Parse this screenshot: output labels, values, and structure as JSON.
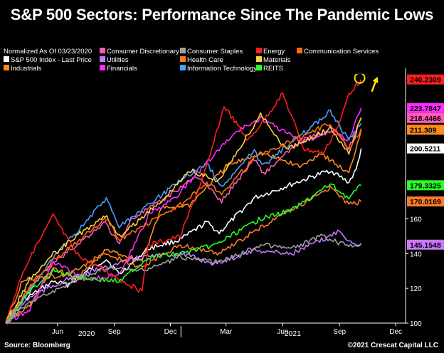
{
  "title": "S&P 500 Sectors: Performance Since The Pandemic Lows",
  "source": "Source: Bloomberg",
  "copyright": "©2021 Crescat Capital LLC",
  "chart_data": {
    "type": "line",
    "legend_header": "Normalized As Of 03/23/2020",
    "legend_placement": "top-left",
    "x_tick_labels": [
      "Jun",
      "Sep",
      "Dec",
      "Mar",
      "Jun",
      "Sep",
      "Dec"
    ],
    "year_labels": [
      "2020",
      "2021"
    ],
    "y_ticks": [
      100,
      120,
      140,
      160
    ],
    "ylim": [
      100,
      245
    ],
    "x_range": [
      "2020-03-23",
      "2021-12-31"
    ],
    "grid": false,
    "annotation": "yellow circle and arrow at Energy end point",
    "series": [
      {
        "name": "S&P 500 Index - Last Price",
        "color": "#ffffff",
        "last": "200.5211",
        "points": [
          [
            "2020-03-23",
            100
          ],
          [
            "2020-04-15",
            112
          ],
          [
            "2020-06-08",
            124
          ],
          [
            "2020-07-01",
            122
          ],
          [
            "2020-08-15",
            133
          ],
          [
            "2020-09-02",
            137
          ],
          [
            "2020-09-23",
            128
          ],
          [
            "2020-11-09",
            143
          ],
          [
            "2020-12-31",
            148
          ],
          [
            "2021-02-12",
            158
          ],
          [
            "2021-03-04",
            152
          ],
          [
            "2021-04-30",
            172
          ],
          [
            "2021-06-15",
            178
          ],
          [
            "2021-08-31",
            188
          ],
          [
            "2021-09-30",
            181
          ],
          [
            "2021-10-12",
            188
          ],
          [
            "2021-10-20",
            200.5
          ]
        ]
      },
      {
        "name": "Industrials",
        "color": "#ff8a1e",
        "last": "211.309",
        "points": [
          [
            "2020-03-23",
            100
          ],
          [
            "2020-05-01",
            110
          ],
          [
            "2020-06-08",
            132
          ],
          [
            "2020-07-15",
            125
          ],
          [
            "2020-09-02",
            142
          ],
          [
            "2020-10-30",
            136
          ],
          [
            "2020-11-30",
            166
          ],
          [
            "2021-01-15",
            168
          ],
          [
            "2021-03-15",
            190
          ],
          [
            "2021-05-10",
            198
          ],
          [
            "2021-07-15",
            190
          ],
          [
            "2021-08-15",
            198
          ],
          [
            "2021-09-30",
            186
          ],
          [
            "2021-10-20",
            211.3
          ]
        ]
      },
      {
        "name": "Consumer Discretionary",
        "color": "#ff5ab4",
        "last": "218.4466",
        "points": [
          [
            "2020-03-23",
            100
          ],
          [
            "2020-04-30",
            120
          ],
          [
            "2020-06-10",
            135
          ],
          [
            "2020-08-31",
            158
          ],
          [
            "2020-09-23",
            145
          ],
          [
            "2020-10-12",
            160
          ],
          [
            "2020-11-30",
            170
          ],
          [
            "2021-01-26",
            185
          ],
          [
            "2021-03-08",
            170
          ],
          [
            "2021-04-30",
            195
          ],
          [
            "2021-05-15",
            186
          ],
          [
            "2021-07-15",
            205
          ],
          [
            "2021-09-07",
            212
          ],
          [
            "2021-09-30",
            200
          ],
          [
            "2021-10-20",
            218.4
          ]
        ]
      },
      {
        "name": "Utilities",
        "color": "#c878ff",
        "last": "145.1548",
        "points": [
          [
            "2020-03-23",
            100
          ],
          [
            "2020-05-01",
            115
          ],
          [
            "2020-06-30",
            125
          ],
          [
            "2020-08-31",
            132
          ],
          [
            "2020-10-30",
            138
          ],
          [
            "2020-12-31",
            140
          ],
          [
            "2021-02-26",
            134
          ],
          [
            "2021-04-30",
            142
          ],
          [
            "2021-06-30",
            140
          ],
          [
            "2021-08-31",
            150
          ],
          [
            "2021-09-15",
            154
          ],
          [
            "2021-09-30",
            147
          ],
          [
            "2021-10-20",
            145.2
          ]
        ]
      },
      {
        "name": "Financials",
        "color": "#ff2cff",
        "last": "223.7847",
        "points": [
          [
            "2020-03-23",
            100
          ],
          [
            "2020-05-01",
            108
          ],
          [
            "2020-06-08",
            135
          ],
          [
            "2020-07-31",
            125
          ],
          [
            "2020-09-25",
            128
          ],
          [
            "2020-11-09",
            162
          ],
          [
            "2020-12-31",
            175
          ],
          [
            "2021-02-26",
            198
          ],
          [
            "2021-03-31",
            210
          ],
          [
            "2021-05-10",
            218
          ],
          [
            "2021-07-19",
            204
          ],
          [
            "2021-09-07",
            212
          ],
          [
            "2021-09-30",
            205
          ],
          [
            "2021-10-20",
            223.8
          ]
        ]
      },
      {
        "name": "Consumer Staples",
        "color": "#a0a0a0",
        "last": "",
        "points": [
          [
            "2020-03-23",
            100
          ],
          [
            "2020-05-01",
            112
          ],
          [
            "2020-06-30",
            122
          ],
          [
            "2020-09-02",
            132
          ],
          [
            "2020-10-30",
            130
          ],
          [
            "2020-12-31",
            138
          ],
          [
            "2021-03-04",
            135
          ],
          [
            "2021-05-10",
            145
          ],
          [
            "2021-06-30",
            143
          ],
          [
            "2021-08-16",
            150
          ],
          [
            "2021-09-30",
            144
          ],
          [
            "2021-10-20",
            146
          ]
        ]
      },
      {
        "name": "Health Care",
        "color": "#ff7a28",
        "last": "170.0169",
        "points": [
          [
            "2020-03-23",
            100
          ],
          [
            "2020-04-20",
            125
          ],
          [
            "2020-06-30",
            128
          ],
          [
            "2020-08-31",
            140
          ],
          [
            "2020-10-30",
            132
          ],
          [
            "2020-12-31",
            145
          ],
          [
            "2021-03-04",
            140
          ],
          [
            "2021-05-10",
            155
          ],
          [
            "2021-08-31",
            178
          ],
          [
            "2021-09-30",
            168
          ],
          [
            "2021-10-20",
            170
          ]
        ]
      },
      {
        "name": "Information Technology",
        "color": "#4aa0ff",
        "last": "",
        "points": [
          [
            "2020-03-23",
            100
          ],
          [
            "2020-04-30",
            118
          ],
          [
            "2020-06-10",
            138
          ],
          [
            "2020-09-02",
            172
          ],
          [
            "2020-09-23",
            155
          ],
          [
            "2020-12-31",
            182
          ],
          [
            "2021-02-12",
            192
          ],
          [
            "2021-03-08",
            178
          ],
          [
            "2021-04-30",
            200
          ],
          [
            "2021-05-12",
            190
          ],
          [
            "2021-08-31",
            222
          ],
          [
            "2021-09-30",
            205
          ],
          [
            "2021-10-20",
            215
          ]
        ]
      },
      {
        "name": "Energy",
        "color": "#ff1e1e",
        "last": "240.2309",
        "points": [
          [
            "2020-03-23",
            100
          ],
          [
            "2020-04-20",
            130
          ],
          [
            "2020-06-08",
            162
          ],
          [
            "2020-07-15",
            140
          ],
          [
            "2020-08-31",
            130
          ],
          [
            "2020-10-30",
            118
          ],
          [
            "2020-11-09",
            145
          ],
          [
            "2020-12-31",
            150
          ],
          [
            "2021-02-12",
            190
          ],
          [
            "2021-03-12",
            225
          ],
          [
            "2021-04-20",
            205
          ],
          [
            "2021-06-15",
            232
          ],
          [
            "2021-07-20",
            200
          ],
          [
            "2021-08-20",
            198
          ],
          [
            "2021-09-15",
            215
          ],
          [
            "2021-09-30",
            232
          ],
          [
            "2021-10-20",
            240.2
          ]
        ]
      },
      {
        "name": "Materials",
        "color": "#ffd040",
        "last": "",
        "points": [
          [
            "2020-03-23",
            100
          ],
          [
            "2020-05-01",
            125
          ],
          [
            "2020-06-08",
            140
          ],
          [
            "2020-08-31",
            162
          ],
          [
            "2020-09-23",
            150
          ],
          [
            "2020-11-30",
            170
          ],
          [
            "2021-01-15",
            188
          ],
          [
            "2021-03-04",
            182
          ],
          [
            "2021-05-10",
            220
          ],
          [
            "2021-06-21",
            200
          ],
          [
            "2021-08-31",
            212
          ],
          [
            "2021-09-30",
            198
          ],
          [
            "2021-10-20",
            218
          ]
        ]
      },
      {
        "name": "Communication Services",
        "color": "#ff6a10",
        "last": "",
        "points": [
          [
            "2020-03-23",
            100
          ],
          [
            "2020-04-30",
            120
          ],
          [
            "2020-06-08",
            136
          ],
          [
            "2020-09-02",
            160
          ],
          [
            "2020-09-23",
            148
          ],
          [
            "2020-12-31",
            168
          ],
          [
            "2021-02-12",
            180
          ],
          [
            "2021-03-08",
            175
          ],
          [
            "2021-04-30",
            195
          ],
          [
            "2021-06-30",
            205
          ],
          [
            "2021-08-31",
            215
          ],
          [
            "2021-09-30",
            200
          ],
          [
            "2021-10-20",
            212
          ]
        ]
      },
      {
        "name": "REITS",
        "color": "#28ff28",
        "last": "179.3325",
        "points": [
          [
            "2020-03-23",
            100
          ],
          [
            "2020-05-01",
            118
          ],
          [
            "2020-06-08",
            130
          ],
          [
            "2020-07-31",
            126
          ],
          [
            "2020-09-25",
            124
          ],
          [
            "2020-11-09",
            138
          ],
          [
            "2020-12-31",
            140
          ],
          [
            "2021-02-26",
            145
          ],
          [
            "2021-03-31",
            152
          ],
          [
            "2021-05-10",
            160
          ],
          [
            "2021-06-30",
            165
          ],
          [
            "2021-08-31",
            180
          ],
          [
            "2021-09-30",
            172
          ],
          [
            "2021-10-20",
            179.3
          ]
        ]
      }
    ]
  }
}
